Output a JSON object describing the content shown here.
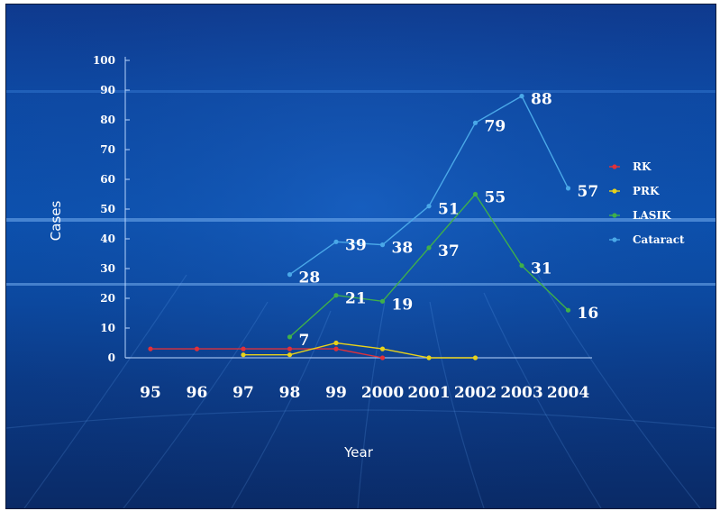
{
  "chart_data": {
    "type": "line",
    "xlabel": "Year",
    "ylabel": "Cases",
    "categories": [
      "95",
      "96",
      "97",
      "98",
      "99",
      "2000",
      "2001",
      "2002",
      "2003",
      "2004"
    ],
    "ylim": [
      0,
      100
    ],
    "yticks": [
      0,
      10,
      20,
      30,
      40,
      50,
      60,
      70,
      80,
      90,
      100
    ],
    "grid": false,
    "legend": "right",
    "series": [
      {
        "name": "RK",
        "color": "#e0313a",
        "values": [
          3,
          3,
          3,
          3,
          3,
          0,
          null,
          null,
          null,
          null
        ],
        "labels": [
          null,
          null,
          null,
          null,
          null,
          null,
          null,
          null,
          null,
          null
        ]
      },
      {
        "name": "PRK",
        "color": "#e8d21a",
        "values": [
          null,
          null,
          1,
          1,
          5,
          3,
          0,
          0,
          null,
          null
        ],
        "labels": [
          null,
          null,
          null,
          null,
          null,
          null,
          null,
          null,
          null,
          null
        ]
      },
      {
        "name": "LASIK",
        "color": "#3fb04a",
        "values": [
          null,
          null,
          null,
          7,
          21,
          19,
          37,
          55,
          31,
          16
        ],
        "labels": [
          null,
          null,
          null,
          "7",
          "21",
          "19",
          "37",
          "55",
          "31",
          "16"
        ]
      },
      {
        "name": "Cataract",
        "color": "#4aa8e8",
        "values": [
          null,
          null,
          null,
          28,
          39,
          38,
          51,
          79,
          88,
          57
        ],
        "labels": [
          null,
          null,
          null,
          "28",
          "39",
          "38",
          "51",
          "79",
          "88",
          "57"
        ]
      }
    ]
  }
}
